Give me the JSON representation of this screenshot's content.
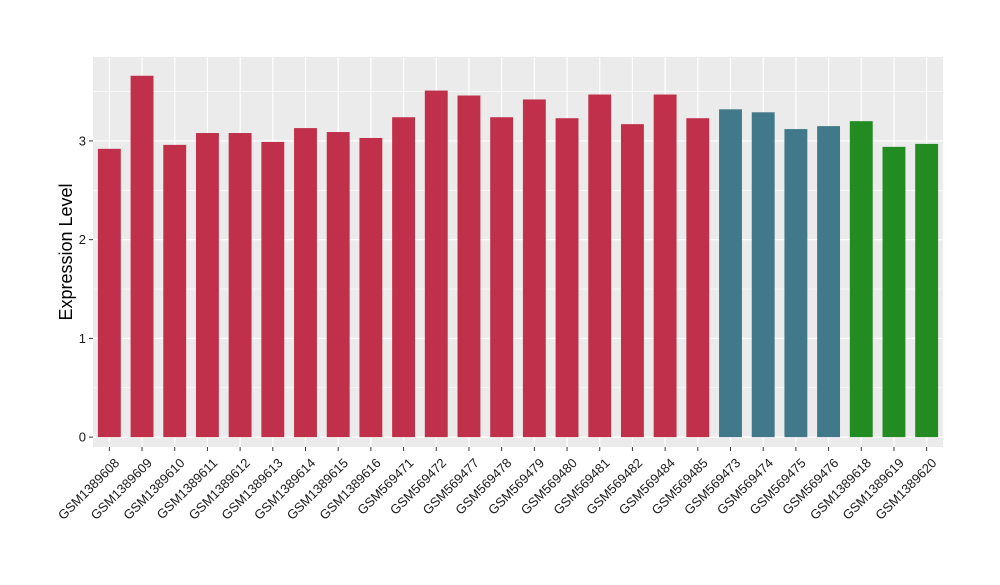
{
  "chart_data": {
    "type": "bar",
    "ylabel": "Expression Level",
    "xlabel": "",
    "ylim": [
      -0.1,
      3.85
    ],
    "yticks": [
      0,
      1,
      2,
      3
    ],
    "grid": true,
    "legend": "none",
    "categories": [
      "GSM1389608",
      "GSM1389609",
      "GSM1389610",
      "GSM1389611",
      "GSM1389612",
      "GSM1389613",
      "GSM1389614",
      "GSM1389615",
      "GSM1389616",
      "GSM569471",
      "GSM569472",
      "GSM569477",
      "GSM569478",
      "GSM569479",
      "GSM569480",
      "GSM569481",
      "GSM569482",
      "GSM569484",
      "GSM569485",
      "GSM569473",
      "GSM569474",
      "GSM569475",
      "GSM569476",
      "GSM1389618",
      "GSM1389619",
      "GSM1389620"
    ],
    "values": [
      2.92,
      3.66,
      2.96,
      3.08,
      3.08,
      2.99,
      3.13,
      3.09,
      3.03,
      3.24,
      3.51,
      3.46,
      3.24,
      3.42,
      3.23,
      3.47,
      3.17,
      3.47,
      3.23,
      3.32,
      3.29,
      3.12,
      3.15,
      3.2,
      2.94,
      2.97
    ],
    "bar_colors": [
      "#c0304a",
      "#c0304a",
      "#c0304a",
      "#c0304a",
      "#c0304a",
      "#c0304a",
      "#c0304a",
      "#c0304a",
      "#c0304a",
      "#c0304a",
      "#c0304a",
      "#c0304a",
      "#c0304a",
      "#c0304a",
      "#c0304a",
      "#c0304a",
      "#c0304a",
      "#c0304a",
      "#c0304a",
      "#41788a",
      "#41788a",
      "#41788a",
      "#41788a",
      "#228b22",
      "#228b22",
      "#228b22"
    ],
    "colors": {
      "panel_bg": "#ebebeb",
      "grid": "#ffffff",
      "text": "#000000",
      "tick_text": "#1a1a1a"
    }
  }
}
